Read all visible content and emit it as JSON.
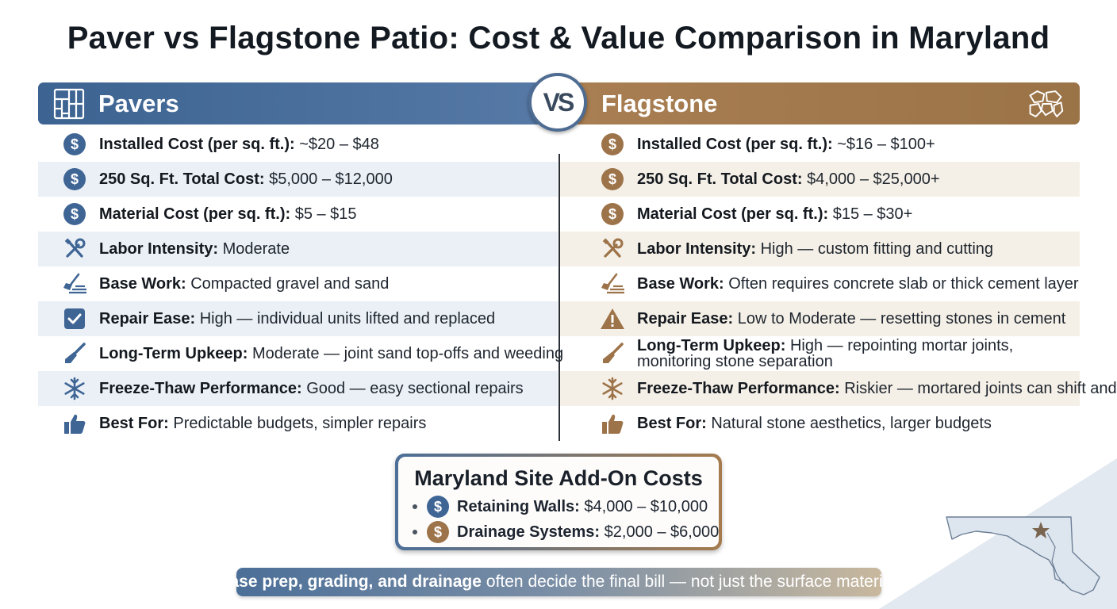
{
  "title": "Paver vs Flagstone Patio: Cost & Value Comparison in Maryland",
  "vs_label": "VS",
  "pavers": {
    "header": "Pavers",
    "header_icon": "paver-grid-icon",
    "rows": [
      {
        "icon": "dollar-coin-icon",
        "label": "Installed Cost (per sq. ft.):",
        "value": "~$20 – $48"
      },
      {
        "icon": "dollar-coin-icon",
        "label": "250 Sq. Ft. Total Cost:",
        "value": "$5,000 – $12,000"
      },
      {
        "icon": "dollar-coin-icon",
        "label": "Material Cost (per sq. ft.):",
        "value": "$5 – $15"
      },
      {
        "icon": "wrench-screwdriver-icon",
        "label": "Labor Intensity:",
        "value": "Moderate"
      },
      {
        "icon": "shovel-base-icon",
        "label": "Base Work:",
        "value": "Compacted gravel and sand"
      },
      {
        "icon": "checkbox-icon",
        "label": "Repair Ease:",
        "value": "High — individual units lifted and replaced"
      },
      {
        "icon": "brush-icon",
        "label": "Long-Term Upkeep:",
        "value": "Moderate — joint sand top-offs and weeding"
      },
      {
        "icon": "snowflake-icon",
        "label": "Freeze-Thaw Performance:",
        "value": "Good — easy sectional repairs"
      },
      {
        "icon": "thumbs-up-icon",
        "label": "Best For:",
        "value": "Predictable budgets, simpler repairs"
      }
    ]
  },
  "flagstone": {
    "header": "Flagstone",
    "header_icon": "flagstone-icon",
    "rows": [
      {
        "icon": "dollar-coin-icon",
        "label": "Installed Cost (per sq. ft.):",
        "value": "~$16 – $100+"
      },
      {
        "icon": "dollar-coin-icon",
        "label": "250 Sq. Ft. Total Cost:",
        "value": "$4,000 – $25,000+"
      },
      {
        "icon": "dollar-coin-icon",
        "label": "Material Cost (per sq. ft.):",
        "value": "$15 – $30+"
      },
      {
        "icon": "wrench-screwdriver-icon",
        "label": "Labor Intensity:",
        "value": "High — custom fitting and cutting"
      },
      {
        "icon": "shovel-base-icon",
        "label": "Base Work:",
        "value": "Often requires concrete slab or thick cement layer"
      },
      {
        "icon": "warning-icon",
        "label": "Repair Ease:",
        "value": "Low to Moderate — resetting stones in cement"
      },
      {
        "icon": "brush-icon",
        "label": "Long-Term Upkeep:",
        "value": "High — repointing mortar joints, monitoring stone separation"
      },
      {
        "icon": "snowflake-icon",
        "label": "Freeze-Thaw Performance:",
        "value": "Riskier — mortared joints can shift and loosen"
      },
      {
        "icon": "thumbs-up-icon",
        "label": "Best For:",
        "value": "Natural stone aesthetics, larger budgets"
      }
    ]
  },
  "addon": {
    "title": "Maryland Site Add-On Costs",
    "items": [
      {
        "label": "Retaining Walls:",
        "value": "$4,000 – $10,000"
      },
      {
        "label": "Drainage Systems:",
        "value": "$2,000 – $6,000"
      }
    ]
  },
  "footer": {
    "bold": "Base prep, grading, and drainage",
    "rest": "often decide the final bill — not just the surface material."
  },
  "colors": {
    "paver_blue": "#3f6595",
    "flagstone_tan": "#9d7349"
  }
}
